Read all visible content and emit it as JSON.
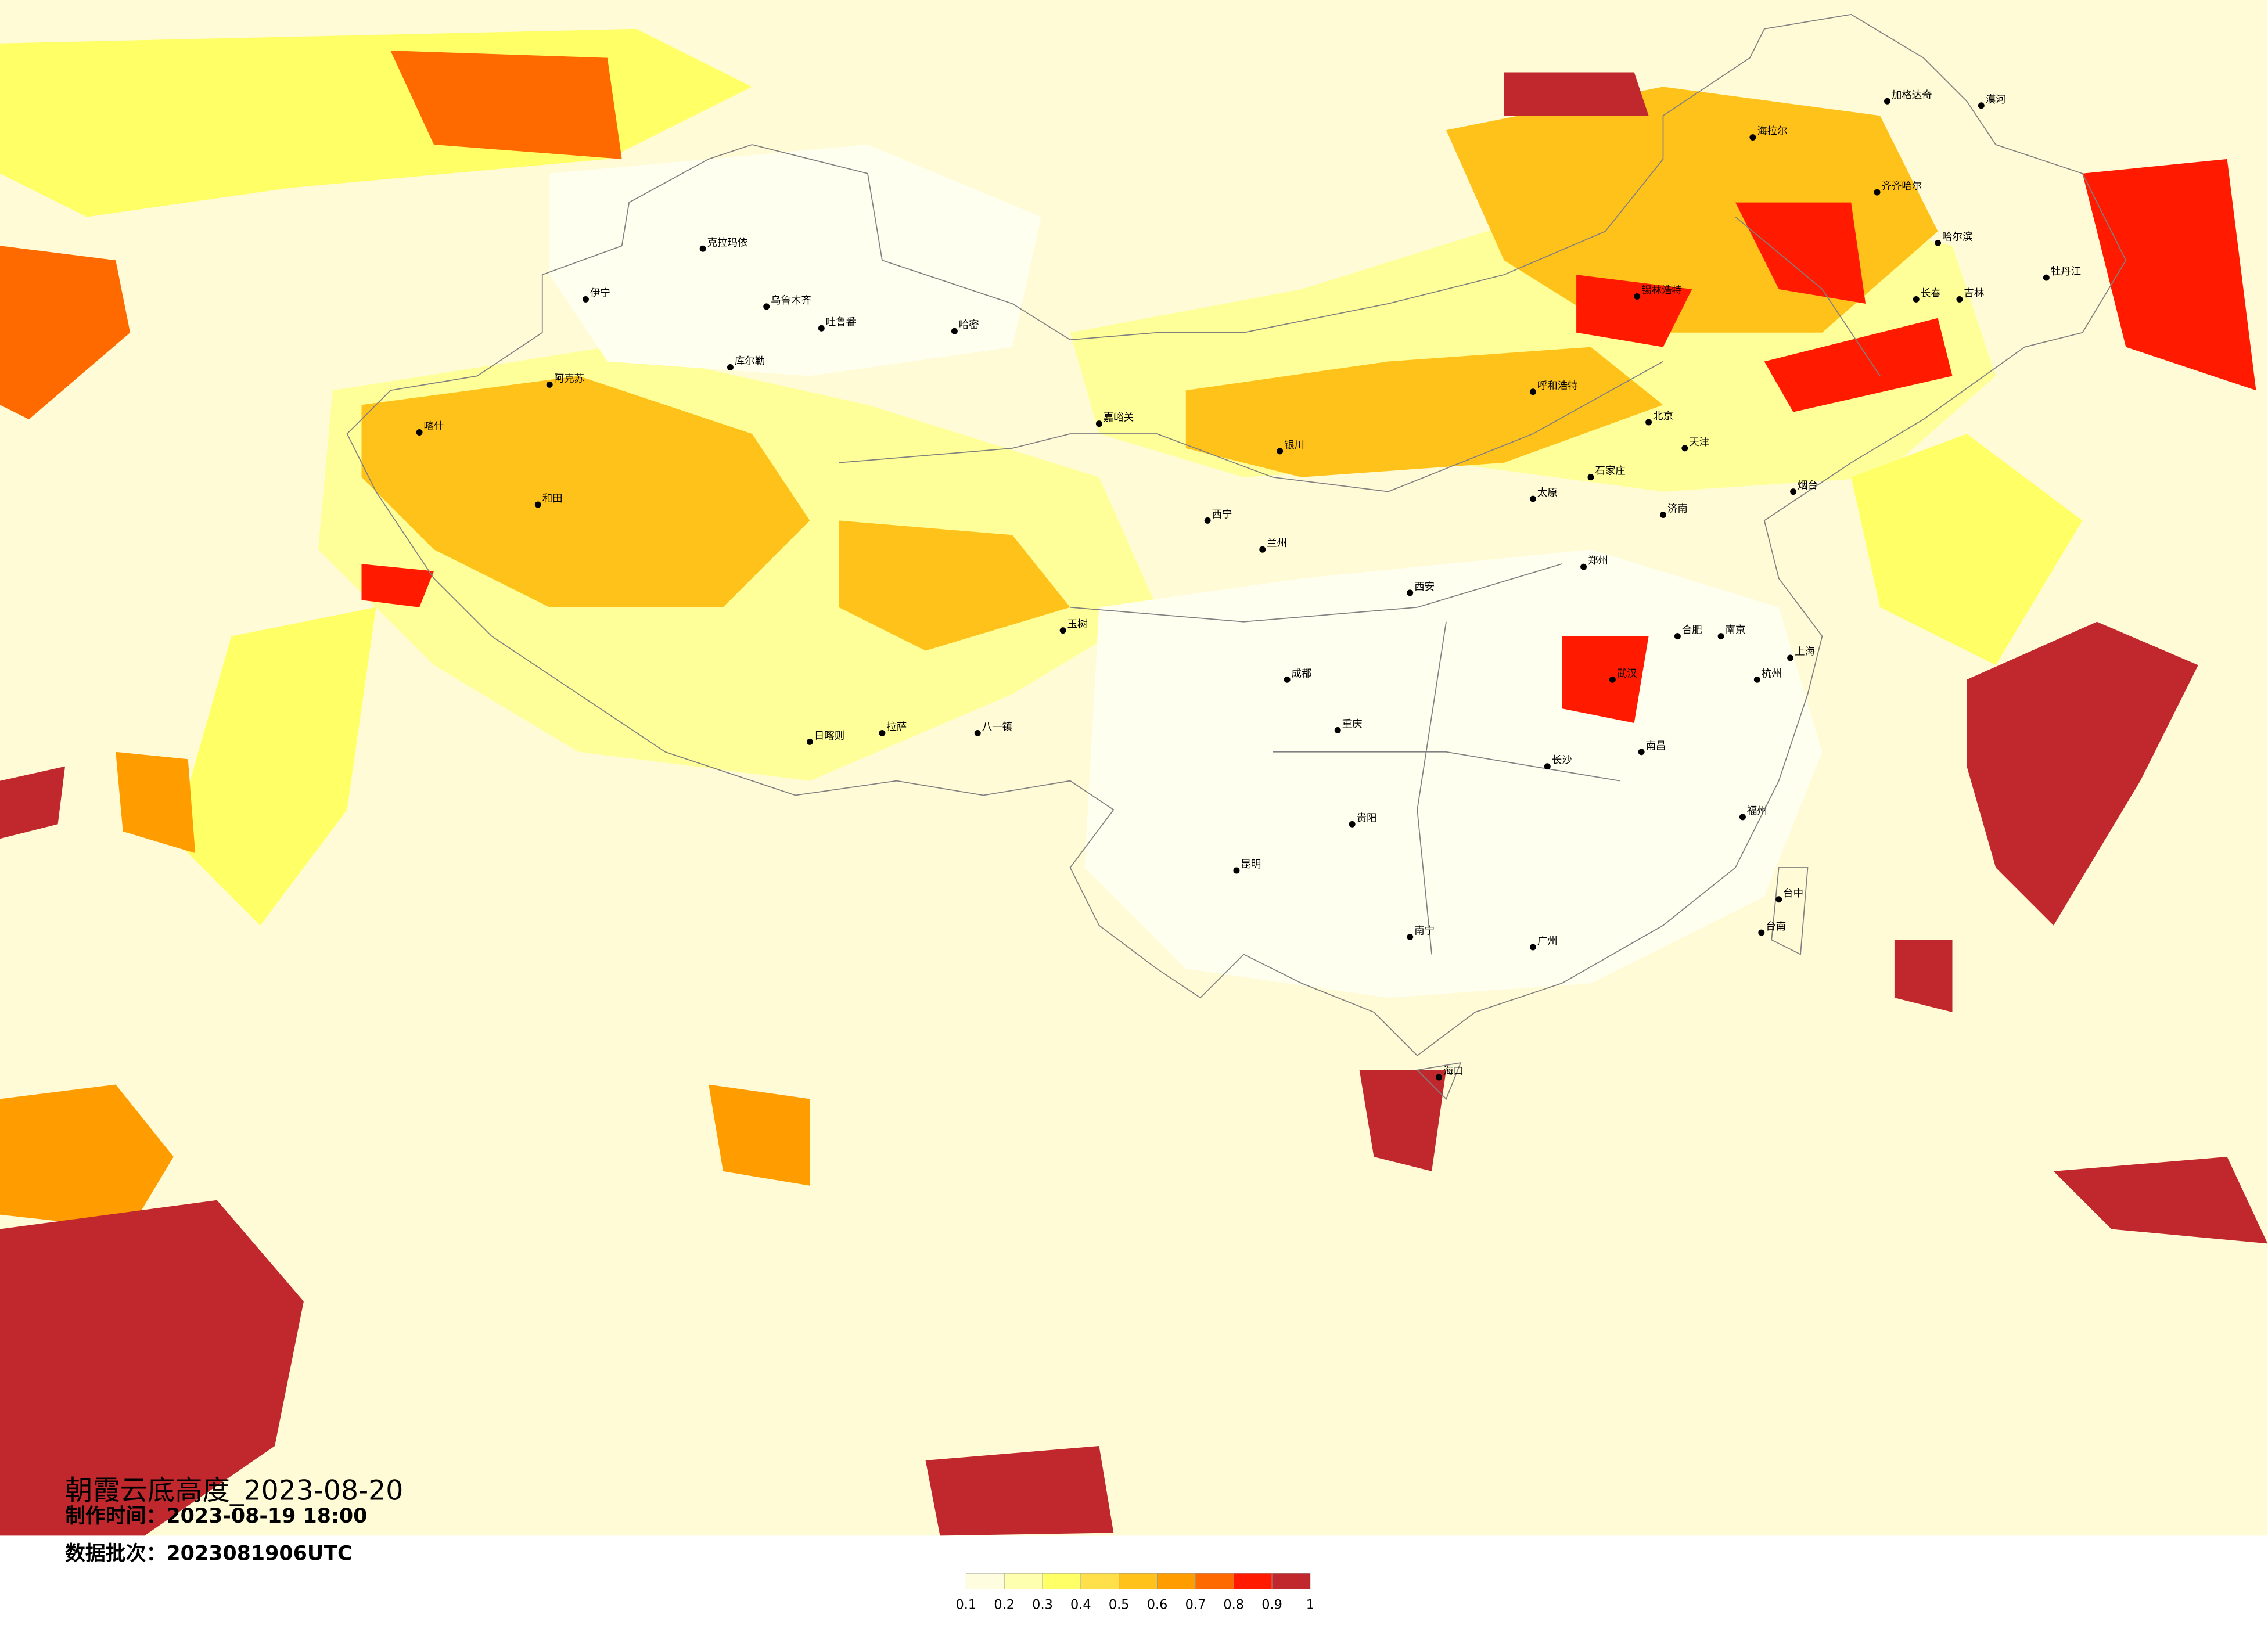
{
  "header": {
    "title": "朝霞云底高度_2023-08-20",
    "production_time": "制作时间：2023-08-19 18:00",
    "data_batch": "数据批次：2023081906UTC"
  },
  "legend": {
    "colors": [
      "#fffde0",
      "#ffffb0",
      "#ffff66",
      "#ffe04a",
      "#ffc21a",
      "#ff9d00",
      "#ff6a00",
      "#ff1a00",
      "#c0282d"
    ],
    "ticks": [
      0.1,
      0.2,
      0.3,
      0.4,
      0.5,
      0.6,
      0.7,
      0.8,
      0.9,
      1
    ]
  },
  "cities": [
    "克拉玛依",
    "伊宁",
    "乌鲁木齐",
    "吐鲁番",
    "哈密",
    "库尔勒",
    "阿克苏",
    "喀什",
    "和田",
    "拉萨",
    "日喀则",
    "八一镇",
    "玉树",
    "嘉峪关",
    "西宁",
    "兰州",
    "银川",
    "呼和浩特",
    "北京",
    "天津",
    "石家庄",
    "太原",
    "济南",
    "西安",
    "郑州",
    "武汉",
    "成都",
    "重庆",
    "贵阳",
    "昆明",
    "南宁",
    "广州",
    "长沙",
    "南昌",
    "合肥",
    "南京",
    "上海",
    "杭州",
    "福州",
    "台中",
    "台南",
    "海拉尔",
    "齐齐哈尔",
    "哈尔滨",
    "长春",
    "吉林",
    "牡丹江",
    "漠河",
    "加格达奇",
    "锡林浩特",
    "烟台",
    "海口"
  ]
}
